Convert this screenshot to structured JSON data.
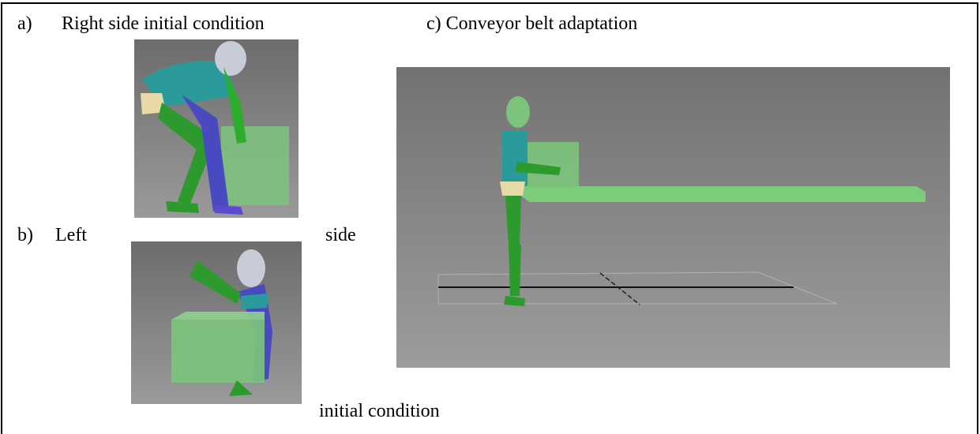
{
  "panels": [
    {
      "letter": "a)",
      "caption": "Right side initial condition"
    },
    {
      "letter": "b)",
      "caption_parts": [
        "Left",
        "side",
        "initial condition"
      ]
    },
    {
      "caption": "c) Conveyor belt adaptation"
    }
  ]
}
